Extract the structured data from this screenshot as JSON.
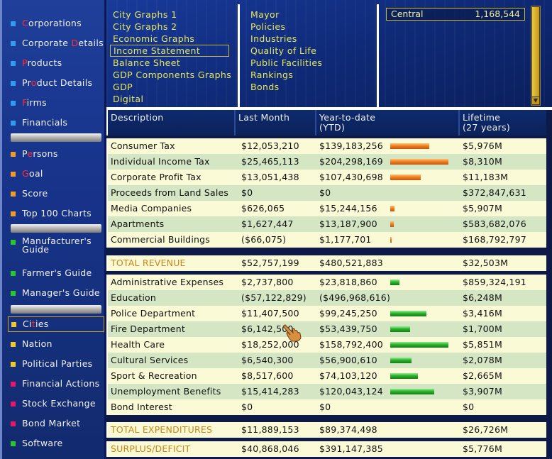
{
  "sidebar": {
    "items": [
      {
        "pre": "",
        "hl": "C",
        "post": "orporations",
        "color": "blue"
      },
      {
        "pre": "Corporate ",
        "hl": "D",
        "post": "etails",
        "color": "blue"
      },
      {
        "pre": "",
        "hl": "P",
        "post": "roducts",
        "color": "blue"
      },
      {
        "pre": "Pr",
        "hl": "o",
        "post": "duct Details",
        "color": "blue"
      },
      {
        "pre": "",
        "hl": "F",
        "post": "irms",
        "color": "blue"
      },
      {
        "pre": "Financials",
        "hl": "",
        "post": "",
        "color": "blue"
      },
      {
        "pre": "P",
        "hl": "e",
        "post": "rsons",
        "color": "orange"
      },
      {
        "pre": "",
        "hl": "G",
        "post": "oal",
        "color": "orange"
      },
      {
        "pre": "Score",
        "hl": "",
        "post": "",
        "color": "orange"
      },
      {
        "pre": "Top 100 Charts",
        "hl": "",
        "post": "",
        "color": "orange"
      },
      {
        "pre": "Manufacturer's Guide",
        "hl": "",
        "post": "",
        "color": "green"
      },
      {
        "pre": "Farmer's Guide",
        "hl": "",
        "post": "",
        "color": "green"
      },
      {
        "pre": "Manager's Guide",
        "hl": "",
        "post": "",
        "color": "green"
      },
      {
        "pre": "Ci",
        "hl": "t",
        "post": "ies",
        "color": "yellow"
      },
      {
        "pre": "Nation",
        "hl": "",
        "post": "",
        "color": "yellow"
      },
      {
        "pre": "Political Parties",
        "hl": "",
        "post": "",
        "color": "yellow"
      },
      {
        "pre": "Financial Actions",
        "hl": "",
        "post": "",
        "color": "red"
      },
      {
        "pre": "Stock Exchange",
        "hl": "",
        "post": "",
        "color": "red"
      },
      {
        "pre": "Bond Market",
        "hl": "",
        "post": "",
        "color": "red"
      },
      {
        "pre": "Software",
        "hl": "",
        "post": "",
        "color": "green"
      }
    ]
  },
  "menu": {
    "col1": [
      "City Graphs 1",
      "City Graphs 2",
      "Economic Graphs",
      "Income Statement",
      "Balance Sheet",
      "GDP Components Graphs",
      "GDP",
      "Digital"
    ],
    "col2": [
      "Mayor",
      "Policies",
      "Industries",
      "Quality of Life",
      "Public Facilities",
      "Rankings",
      "Bonds"
    ],
    "selected": "Income Statement"
  },
  "region": {
    "name": "Central",
    "value": "1,168,544"
  },
  "table": {
    "headers": {
      "desc": "Description",
      "last": "Last Month",
      "ytd1": "Year-to-date",
      "ytd2": "(YTD)",
      "life1": "Lifetime",
      "life2": "(27 years)"
    },
    "revenue": [
      {
        "desc": "Consumer Tax",
        "last": "$12,053,210",
        "ytd": "$139,183,256",
        "bar": 0.55,
        "life": "$5,976M"
      },
      {
        "desc": "Individual Income Tax",
        "last": "$25,465,113",
        "ytd": "$204,298,169",
        "bar": 0.82,
        "life": "$8,310M"
      },
      {
        "desc": "Corporate Profit Tax",
        "last": "$13,051,438",
        "ytd": "$107,430,698",
        "bar": 0.43,
        "life": "$11,183M"
      },
      {
        "desc": "Proceeds from Land Sales",
        "last": "$0",
        "ytd": "$0",
        "bar": 0,
        "life": "$372,847,631"
      },
      {
        "desc": "Media Companies",
        "last": "$626,065",
        "ytd": "$15,244,156",
        "bar": 0.06,
        "life": "$5,907M"
      },
      {
        "desc": "Apartments",
        "last": "$1,627,447",
        "ytd": "$13,187,900",
        "bar": 0.05,
        "life": "$583,682,076"
      },
      {
        "desc": "Commercial Buildings",
        "last": "($66,075)",
        "ytd": "$1,177,701",
        "bar": 0.01,
        "life": "$168,792,797"
      }
    ],
    "total_revenue": {
      "desc": "TOTAL REVENUE",
      "last": "$52,757,199",
      "ytd": "$480,521,883",
      "life": "$32,503M"
    },
    "expenditures": [
      {
        "desc": "Administrative Expenses",
        "last": "$2,737,800",
        "ytd": "$23,818,860",
        "bar": 0.13,
        "life": "$859,324,191"
      },
      {
        "desc": "Education",
        "last": "($57,122,829)",
        "ytd": "($496,968,616)",
        "bar": 0,
        "life": "$6,248M"
      },
      {
        "desc": "Police Department",
        "last": "$11,407,500",
        "ytd": "$99,245,250",
        "bar": 0.51,
        "life": "$3,416M"
      },
      {
        "desc": "Fire Department",
        "last": "$6,142,500",
        "ytd": "$53,439,750",
        "bar": 0.28,
        "life": "$1,700M"
      },
      {
        "desc": "Health Care",
        "last": "$18,252,000",
        "ytd": "$158,792,400",
        "bar": 0.82,
        "life": "$5,851M"
      },
      {
        "desc": "Cultural Services",
        "last": "$6,540,300",
        "ytd": "$56,900,610",
        "bar": 0.3,
        "life": "$2,078M"
      },
      {
        "desc": "Sport & Recreation",
        "last": "$8,517,600",
        "ytd": "$74,103,120",
        "bar": 0.39,
        "life": "$2,665M"
      },
      {
        "desc": "Unemployment Benefits",
        "last": "$15,414,283",
        "ytd": "$120,043,124",
        "bar": 0.62,
        "life": "$3,907M"
      },
      {
        "desc": "Bond Interest",
        "last": "$0",
        "ytd": "$0",
        "bar": 0,
        "life": "$0"
      }
    ],
    "total_expenditures": {
      "desc": "TOTAL EXPENDITURES",
      "last": "$11,889,153",
      "ytd": "$89,374,498",
      "life": "$26,726M"
    },
    "surplus": {
      "desc": "SURPLUS/DEFICIT",
      "last": "$40,868,046",
      "ytd": "$391,147,385",
      "life": "$5,776M"
    }
  },
  "colors": {
    "revenue_bar": "#f08020",
    "expense_bar": "#30b030",
    "total_text": "#c88418",
    "menu_text": "#e8e858"
  }
}
